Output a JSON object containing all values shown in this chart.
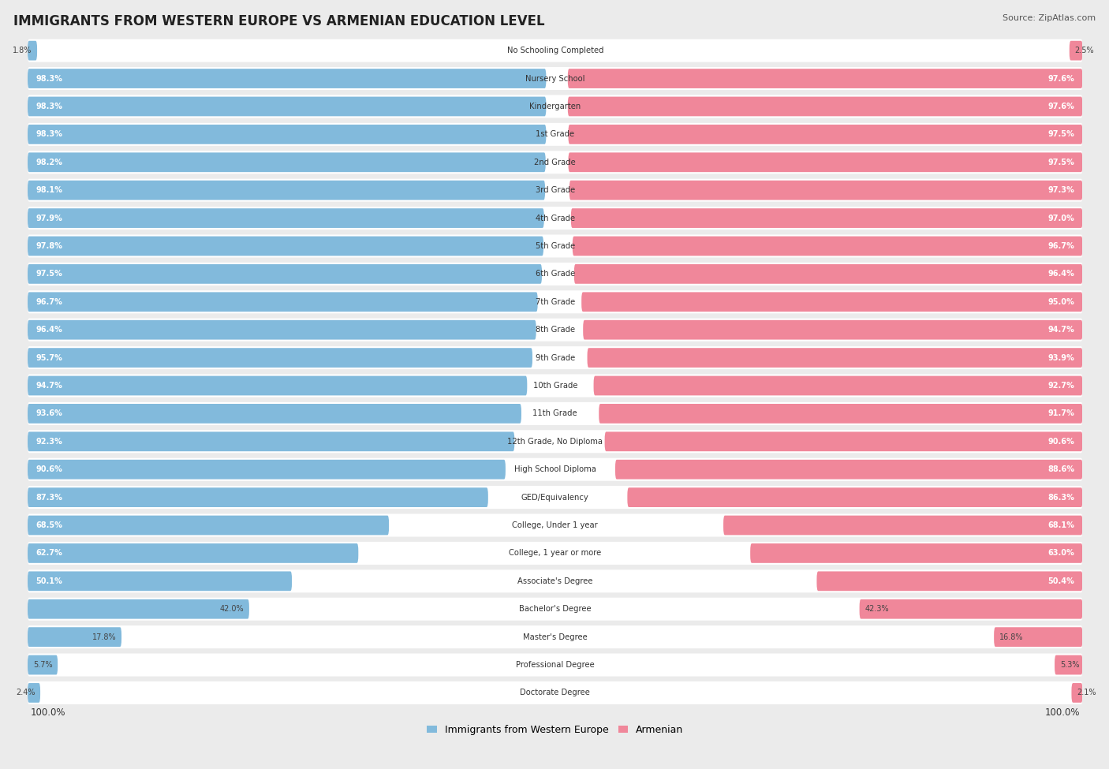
{
  "title": "IMMIGRANTS FROM WESTERN EUROPE VS ARMENIAN EDUCATION LEVEL",
  "source": "Source: ZipAtlas.com",
  "categories": [
    "No Schooling Completed",
    "Nursery School",
    "Kindergarten",
    "1st Grade",
    "2nd Grade",
    "3rd Grade",
    "4th Grade",
    "5th Grade",
    "6th Grade",
    "7th Grade",
    "8th Grade",
    "9th Grade",
    "10th Grade",
    "11th Grade",
    "12th Grade, No Diploma",
    "High School Diploma",
    "GED/Equivalency",
    "College, Under 1 year",
    "College, 1 year or more",
    "Associate's Degree",
    "Bachelor's Degree",
    "Master's Degree",
    "Professional Degree",
    "Doctorate Degree"
  ],
  "western_europe": [
    1.8,
    98.3,
    98.3,
    98.3,
    98.2,
    98.1,
    97.9,
    97.8,
    97.5,
    96.7,
    96.4,
    95.7,
    94.7,
    93.6,
    92.3,
    90.6,
    87.3,
    68.5,
    62.7,
    50.1,
    42.0,
    17.8,
    5.7,
    2.4
  ],
  "armenian": [
    2.5,
    97.6,
    97.6,
    97.5,
    97.5,
    97.3,
    97.0,
    96.7,
    96.4,
    95.0,
    94.7,
    93.9,
    92.7,
    91.7,
    90.6,
    88.6,
    86.3,
    68.1,
    63.0,
    50.4,
    42.3,
    16.8,
    5.3,
    2.1
  ],
  "blue_color": "#82BADC",
  "pink_color": "#F0879A",
  "bg_color": "#EBEBEB",
  "row_bg_color": "#FFFFFF",
  "legend_blue": "Immigrants from Western Europe",
  "legend_pink": "Armenian",
  "x_left_label": "100.0%",
  "x_right_label": "100.0%"
}
